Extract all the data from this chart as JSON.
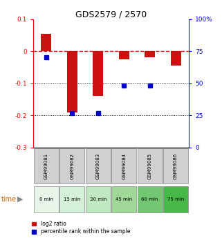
{
  "title": "GDS2579 / 2570",
  "samples": [
    "GSM99081",
    "GSM99082",
    "GSM99083",
    "GSM99084",
    "GSM99085",
    "GSM99086"
  ],
  "time_labels": [
    "0 min",
    "15 min",
    "30 min",
    "45 min",
    "60 min",
    "75 min"
  ],
  "time_bg_colors": [
    "#e8f5e9",
    "#d4f0d8",
    "#c0e8c0",
    "#a0d898",
    "#72c872",
    "#48b848"
  ],
  "gsm_bg_color": "#d0d0d0",
  "log2_values": [
    0.055,
    -0.19,
    -0.14,
    -0.025,
    -0.02,
    -0.045
  ],
  "pct_values": [
    70,
    27,
    27,
    48,
    48,
    null
  ],
  "bar_color": "#cc1111",
  "dot_color": "#0000cc",
  "ylim_left": [
    -0.3,
    0.1
  ],
  "ylim_right": [
    0,
    100
  ],
  "bg_color": "#ffffff",
  "legend_red_label": "log2 ratio",
  "legend_blue_label": "percentile rank within the sample"
}
